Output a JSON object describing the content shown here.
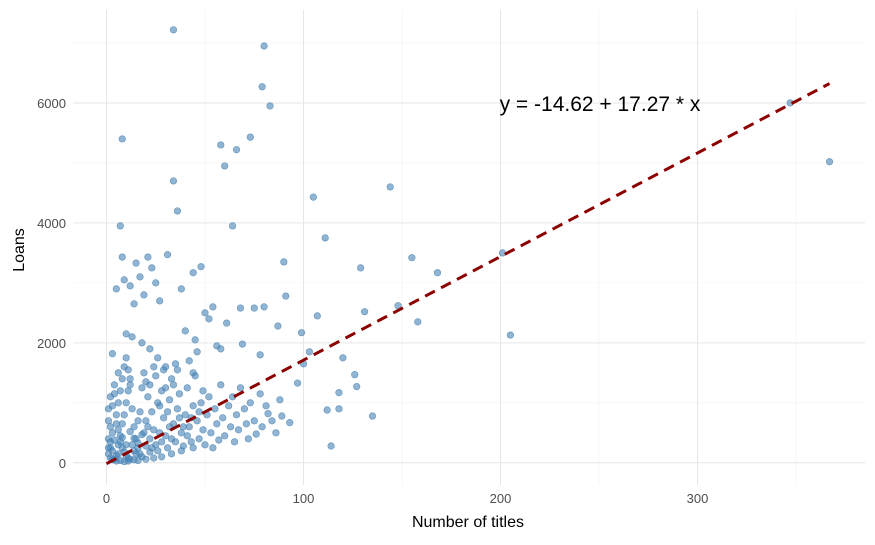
{
  "chart_data": {
    "type": "scatter",
    "title": "",
    "xlabel": "Number of titles",
    "ylabel": "Loans",
    "xlim": [
      -17,
      385
    ],
    "ylim": [
      -370,
      7550
    ],
    "x_ticks": [
      0,
      100,
      200,
      300
    ],
    "y_ticks": [
      0,
      2000,
      4000,
      6000
    ],
    "grid": true,
    "point_color": "#4682B4",
    "line_color": "#8B0000",
    "annotation": "y = -14.62 + 17.27 * x",
    "fit": {
      "intercept": -14.62,
      "slope": 17.27,
      "x_range": [
        0,
        367
      ],
      "style": "dashed"
    },
    "points": [
      [
        34,
        7220
      ],
      [
        80,
        6950
      ],
      [
        79,
        6270
      ],
      [
        83,
        5950
      ],
      [
        347,
        6000
      ],
      [
        367,
        5020
      ],
      [
        8,
        5400
      ],
      [
        58,
        5300
      ],
      [
        66,
        5220
      ],
      [
        73,
        5430
      ],
      [
        60,
        4950
      ],
      [
        34,
        4700
      ],
      [
        144,
        4600
      ],
      [
        105,
        4430
      ],
      [
        36,
        4200
      ],
      [
        7,
        3950
      ],
      [
        64,
        3950
      ],
      [
        111,
        3750
      ],
      [
        201,
        3500
      ],
      [
        90,
        3350
      ],
      [
        8,
        3430
      ],
      [
        21,
        3430
      ],
      [
        31,
        3470
      ],
      [
        129,
        3250
      ],
      [
        155,
        3420
      ],
      [
        168,
        3170
      ],
      [
        48,
        3270
      ],
      [
        44,
        3170
      ],
      [
        23,
        3250
      ],
      [
        15,
        3330
      ],
      [
        91,
        2780
      ],
      [
        148,
        2620
      ],
      [
        131,
        2520
      ],
      [
        158,
        2350
      ],
      [
        205,
        2130
      ],
      [
        107,
        2450
      ],
      [
        99,
        2170
      ],
      [
        80,
        2600
      ],
      [
        75,
        2580
      ],
      [
        68,
        2580
      ],
      [
        61,
        2330
      ],
      [
        87,
        2280
      ],
      [
        78,
        1800
      ],
      [
        69,
        1980
      ],
      [
        103,
        1850
      ],
      [
        100,
        1650
      ],
      [
        120,
        1750
      ],
      [
        126,
        1470
      ],
      [
        127,
        1270
      ],
      [
        118,
        1170
      ],
      [
        112,
        880
      ],
      [
        118,
        900
      ],
      [
        135,
        780
      ],
      [
        114,
        280
      ],
      [
        97,
        1330
      ],
      [
        93,
        670
      ],
      [
        89,
        780
      ],
      [
        82,
        820
      ],
      [
        3,
        1820
      ],
      [
        5,
        2900
      ],
      [
        9,
        3050
      ],
      [
        12,
        2950
      ],
      [
        14,
        2650
      ],
      [
        17,
        3100
      ],
      [
        19,
        2800
      ],
      [
        25,
        3000
      ],
      [
        27,
        2700
      ],
      [
        38,
        2900
      ],
      [
        40,
        2200
      ],
      [
        45,
        2050
      ],
      [
        50,
        2500
      ],
      [
        52,
        2400
      ],
      [
        54,
        2600
      ],
      [
        56,
        1950
      ],
      [
        58,
        1900
      ],
      [
        46,
        1850
      ],
      [
        42,
        1700
      ],
      [
        35,
        1650
      ],
      [
        30,
        1600
      ],
      [
        26,
        1750
      ],
      [
        22,
        1900
      ],
      [
        18,
        2000
      ],
      [
        13,
        2100
      ],
      [
        10,
        2150
      ],
      [
        6,
        1500
      ],
      [
        4,
        1300
      ],
      [
        2,
        1100
      ],
      [
        1,
        900
      ],
      [
        1,
        700
      ],
      [
        2,
        600
      ],
      [
        3,
        500
      ],
      [
        1,
        400
      ],
      [
        2,
        350
      ],
      [
        1,
        250
      ],
      [
        3,
        200
      ],
      [
        1,
        150
      ],
      [
        2,
        80
      ],
      [
        4,
        60
      ],
      [
        5,
        120
      ],
      [
        6,
        300
      ],
      [
        7,
        450
      ],
      [
        8,
        650
      ],
      [
        9,
        800
      ],
      [
        10,
        1000
      ],
      [
        11,
        1200
      ],
      [
        12,
        1400
      ],
      [
        13,
        900
      ],
      [
        14,
        600
      ],
      [
        15,
        400
      ],
      [
        16,
        250
      ],
      [
        17,
        150
      ],
      [
        18,
        100
      ],
      [
        19,
        500
      ],
      [
        20,
        700
      ],
      [
        21,
        1100
      ],
      [
        22,
        1300
      ],
      [
        23,
        850
      ],
      [
        24,
        550
      ],
      [
        25,
        300
      ],
      [
        26,
        200
      ],
      [
        27,
        950
      ],
      [
        28,
        1200
      ],
      [
        29,
        750
      ],
      [
        30,
        450
      ],
      [
        31,
        250
      ],
      [
        32,
        1050
      ],
      [
        33,
        1400
      ],
      [
        34,
        650
      ],
      [
        35,
        350
      ],
      [
        36,
        900
      ],
      [
        37,
        1150
      ],
      [
        38,
        500
      ],
      [
        39,
        280
      ],
      [
        40,
        800
      ],
      [
        41,
        1250
      ],
      [
        42,
        600
      ],
      [
        43,
        350
      ],
      [
        44,
        950
      ],
      [
        45,
        1450
      ],
      [
        46,
        700
      ],
      [
        47,
        400
      ],
      [
        48,
        1000
      ],
      [
        49,
        550
      ],
      [
        50,
        300
      ],
      [
        51,
        800
      ],
      [
        52,
        1100
      ],
      [
        53,
        500
      ],
      [
        54,
        250
      ],
      [
        55,
        900
      ],
      [
        56,
        650
      ],
      [
        57,
        380
      ],
      [
        58,
        1300
      ],
      [
        59,
        750
      ],
      [
        60,
        450
      ],
      [
        62,
        950
      ],
      [
        63,
        600
      ],
      [
        64,
        1100
      ],
      [
        65,
        350
      ],
      [
        66,
        800
      ],
      [
        67,
        550
      ],
      [
        68,
        1250
      ],
      [
        70,
        900
      ],
      [
        71,
        650
      ],
      [
        72,
        400
      ],
      [
        73,
        1000
      ],
      [
        75,
        700
      ],
      [
        76,
        480
      ],
      [
        78,
        1150
      ],
      [
        79,
        600
      ],
      [
        81,
        950
      ],
      [
        84,
        700
      ],
      [
        86,
        500
      ],
      [
        88,
        1050
      ],
      [
        5,
        800
      ],
      [
        6,
        1000
      ],
      [
        7,
        1200
      ],
      [
        8,
        1400
      ],
      [
        9,
        1600
      ],
      [
        10,
        1750
      ],
      [
        11,
        1550
      ],
      [
        12,
        1300
      ],
      [
        3,
        950
      ],
      [
        4,
        1150
      ],
      [
        5,
        650
      ],
      [
        6,
        550
      ],
      [
        7,
        350
      ],
      [
        8,
        250
      ],
      [
        9,
        180
      ],
      [
        10,
        120
      ],
      [
        11,
        80
      ],
      [
        12,
        60
      ],
      [
        13,
        300
      ],
      [
        14,
        200
      ],
      [
        15,
        150
      ],
      [
        16,
        700
      ],
      [
        17,
        850
      ],
      [
        18,
        1250
      ],
      [
        19,
        1500
      ],
      [
        20,
        1350
      ],
      [
        21,
        600
      ],
      [
        22,
        400
      ],
      [
        23,
        250
      ],
      [
        24,
        1600
      ],
      [
        25,
        1450
      ],
      [
        26,
        1000
      ],
      [
        27,
        500
      ],
      [
        28,
        350
      ],
      [
        29,
        1550
      ],
      [
        30,
        1250
      ],
      [
        31,
        850
      ],
      [
        32,
        600
      ],
      [
        33,
        400
      ],
      [
        34,
        1300
      ],
      [
        36,
        1550
      ],
      [
        37,
        750
      ],
      [
        39,
        600
      ],
      [
        41,
        450
      ],
      [
        43,
        750
      ],
      [
        44,
        1500
      ],
      [
        47,
        850
      ],
      [
        49,
        1200
      ],
      [
        3,
        50
      ],
      [
        5,
        30
      ],
      [
        7,
        40
      ],
      [
        9,
        20
      ],
      [
        11,
        30
      ],
      [
        14,
        50
      ],
      [
        16,
        40
      ],
      [
        20,
        60
      ],
      [
        24,
        80
      ],
      [
        28,
        100
      ],
      [
        33,
        150
      ],
      [
        38,
        200
      ],
      [
        44,
        250
      ],
      [
        2,
        250
      ],
      [
        4,
        380
      ],
      [
        6,
        150
      ],
      [
        8,
        420
      ],
      [
        10,
        300
      ],
      [
        12,
        520
      ],
      [
        14,
        410
      ],
      [
        16,
        330
      ],
      [
        18,
        470
      ],
      [
        20,
        280
      ],
      [
        22,
        180
      ]
    ]
  }
}
